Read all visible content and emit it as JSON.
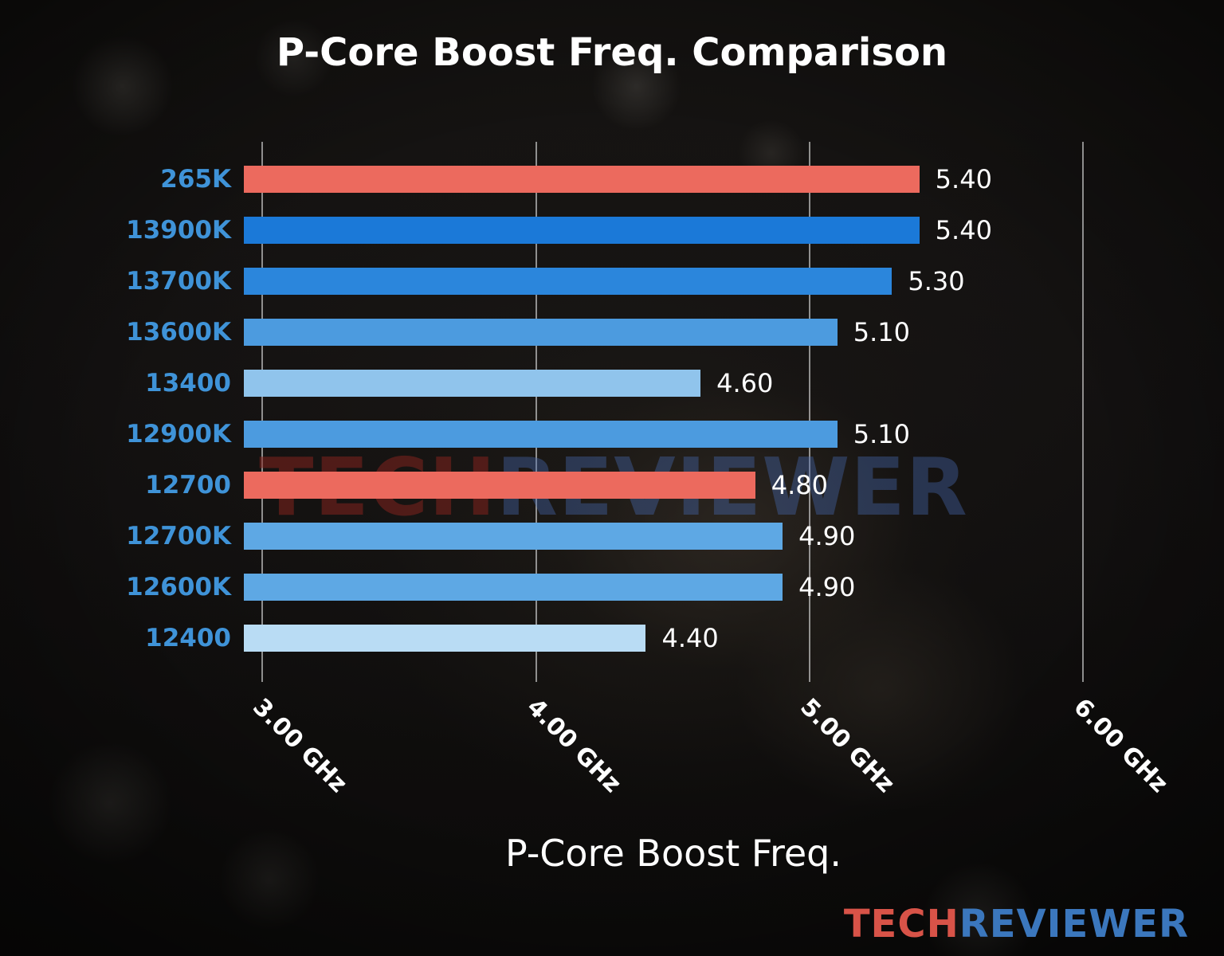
{
  "chart_data": {
    "type": "bar",
    "orientation": "horizontal",
    "title": "P-Core Boost Freq. Comparison",
    "xlabel": "P-Core Boost Freq.",
    "categories": [
      "265K",
      "13900K",
      "13700K",
      "13600K",
      "13400",
      "12900K",
      "12700",
      "12700K",
      "12600K",
      "12400"
    ],
    "values": [
      5.4,
      5.4,
      5.3,
      5.1,
      4.6,
      5.1,
      4.8,
      4.9,
      4.9,
      4.4
    ],
    "value_labels": [
      "5.40",
      "5.40",
      "5.30",
      "5.10",
      "4.60",
      "5.10",
      "4.80",
      "4.90",
      "4.90",
      "4.40"
    ],
    "bar_colors": [
      "#ec6a5e",
      "#1b79d8",
      "#2b86dc",
      "#4c9bdf",
      "#90c4ec",
      "#4c9bdf",
      "#ec6a5e",
      "#5ea8e4",
      "#5ea8e4",
      "#b9dcf4"
    ],
    "x_ticks": [
      {
        "label": "3.00 GHz",
        "value": 3.0
      },
      {
        "label": "4.00 GHz",
        "value": 4.0
      },
      {
        "label": "5.00 GHz",
        "value": 5.0
      },
      {
        "label": "6.00 GHz",
        "value": 6.0
      }
    ],
    "xlim": [
      2.93,
      6.38
    ],
    "grid": true,
    "category_label_color": "#3f93d8",
    "value_label_color": "#ffffff",
    "unit": "GHz"
  },
  "watermark": {
    "tech": "TECH",
    "reviewer": "REVIEWER"
  },
  "logo": {
    "tech": "TECH",
    "reviewer": "REVIEWER"
  }
}
